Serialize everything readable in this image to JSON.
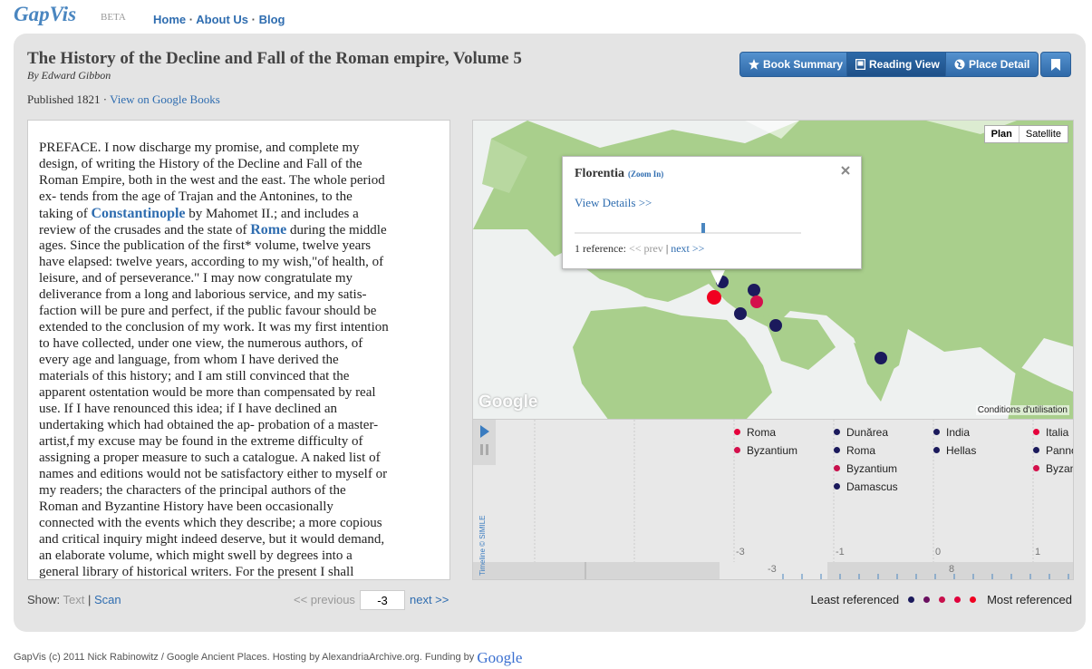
{
  "header": {
    "logo": "GapVis",
    "beta": "BETA",
    "nav": [
      "Home",
      "About Us",
      "Blog"
    ],
    "nav_separator": "·"
  },
  "book": {
    "title": "The History of the Decline and Fall of the Roman empire, Volume 5",
    "author": "By Edward Gibbon",
    "published": "Published 1821",
    "separator": "·",
    "google_link": "View on Google Books"
  },
  "buttons": {
    "summary": "Book Summary",
    "reading": "Reading View",
    "place": "Place Detail"
  },
  "text": {
    "lines": [
      "PREFACE. I now discharge my promise, and complete my",
      "design, of writing the History of the Decline and Fall of the",
      "Roman Empire, both in the west and the east. The whole period",
      "ex- tends from the age of Trajan and the Antonines, to the",
      [
        "taking of ",
        {
          "link": "Constantinople"
        },
        " by Mahomet II.; and includes a"
      ],
      [
        "review of the crusades and the state of ",
        {
          "link": "Rome"
        },
        " during the middle"
      ],
      "ages. Since the publication of the first* volume, twelve years",
      "have elapsed: twelve years, according to my wish,\"of health, of",
      "leisure, and of perseverance.\" I may now congratulate my",
      "deliverance from a long and laborious service, and my satis-",
      "faction will be pure and perfect, if the public favour should be",
      "extended to the conclusion of my work. It was my first intention",
      "to have collected, under one view, the numerous authors, of",
      "every age and language, from whom I have derived the",
      "materials of this history; and I am still convinced that the",
      "apparent ostentation would be more than compensated by real",
      "use. If I have renounced this idea; if I have declined an",
      "undertaking which had obtained the ap- probation of a master-",
      "artist,f my excuse may be found in the extreme difficulty of",
      "assigning a proper measure to such a catalogue. A naked list of",
      "names and editions would not be satisfactory either to myself or",
      "my readers; the characters of the principal authors of the",
      "Roman and Byzantine History have been occasionally",
      "connected with the events which they describe; a more copious",
      "and critical inquiry might indeed deserve, but it would demand,",
      "an elaborate volume, which might swell by degrees into a",
      "general library of historical writers. For the present I shall"
    ]
  },
  "map": {
    "plan": "Plan",
    "satellite": "Satellite",
    "attribution": "Google",
    "terms": "Conditions d'utilisation",
    "popup": {
      "place": "Florentia",
      "zoom": "(Zoom In)",
      "details": "View Details >>",
      "references": "1 reference:",
      "prev": "<< prev",
      "separator": "|",
      "next": "next >>"
    }
  },
  "timeline": {
    "credit": "Timeline © SIMILE",
    "columns": [
      [
        {
          "name": "Roma",
          "color": "#e5003c"
        },
        {
          "name": "Byzantium",
          "color": "#d4104c"
        }
      ],
      [
        {
          "name": "Dunărea",
          "color": "#1b1a5c"
        },
        {
          "name": "Roma",
          "color": "#1b1a5c"
        },
        {
          "name": "Byzantium",
          "color": "#c8104c"
        },
        {
          "name": "Damascus",
          "color": "#1b1a5c"
        }
      ],
      [
        {
          "name": "India",
          "color": "#1b1a5c"
        },
        {
          "name": "Hellas",
          "color": "#1b1a5c"
        }
      ],
      [
        {
          "name": "Italia",
          "color": "#e5003c"
        },
        {
          "name": "Panno",
          "color": "#1b1a5c"
        },
        {
          "name": "Byzan",
          "color": "#d4104c"
        }
      ]
    ],
    "ticks": [
      "-3",
      "-1",
      "0",
      "1"
    ],
    "overview_ticks": [
      "-3",
      "8"
    ]
  },
  "controls": {
    "show": "Show:",
    "text": "Text",
    "separator": "|",
    "scan": "Scan",
    "prev": "<< previous",
    "page": "-3",
    "next": "next >>"
  },
  "legend": {
    "least": "Least referenced",
    "colors": [
      "#1b1a5c",
      "#6a1060",
      "#c8104c",
      "#e0003c",
      "#f00020"
    ],
    "most": "Most referenced"
  },
  "footer": {
    "text": "GapVis (c) 2011 Nick Rabinowitz / Google Ancient Places. Hosting by AlexandriaArchive.org. Funding by",
    "google": "Google"
  }
}
